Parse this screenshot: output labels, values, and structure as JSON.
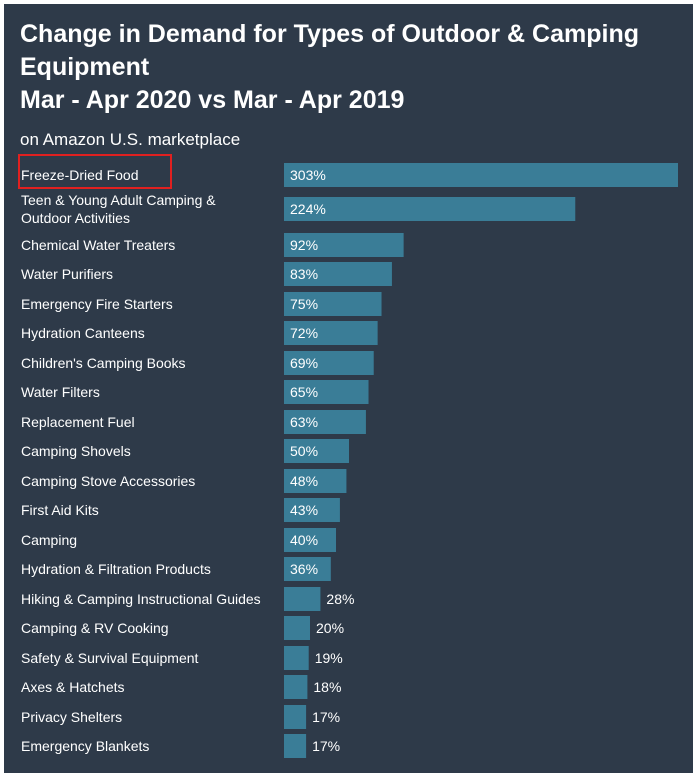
{
  "title": {
    "line1": "Change in Demand for Types of Outdoor & Camping",
    "line2": "Equipment",
    "line3": "Mar - Apr 2020 vs Mar - Apr 2019"
  },
  "subtitle": "on Amazon U.S. marketplace",
  "colors": {
    "background": "#2e3a49",
    "bar": "#3a7d97",
    "text": "#ffffff",
    "highlight": "#e02020"
  },
  "chart_data": {
    "type": "bar",
    "orientation": "horizontal",
    "title": "Change in Demand for Types of Outdoor & Camping Equipment Mar - Apr 2020 vs Mar - Apr 2019",
    "subtitle": "on Amazon U.S. marketplace",
    "categories": [
      "Freeze-Dried Food",
      "Teen & Young Adult Camping & Outdoor Activities",
      "Chemical Water Treaters",
      "Water Purifiers",
      "Emergency Fire Starters",
      "Hydration Canteens",
      "Children's Camping Books",
      "Water Filters",
      "Replacement Fuel",
      "Camping Shovels",
      "Camping Stove Accessories",
      "First Aid Kits",
      "Camping",
      "Hydration & Filtration Products",
      "Hiking & Camping Instructional Guides",
      "Camping & RV Cooking",
      "Safety & Survival Equipment",
      "Axes & Hatchets",
      "Privacy Shelters",
      "Emergency Blankets"
    ],
    "category_lines": [
      [
        "Freeze-Dried Food"
      ],
      [
        "Teen & Young Adult Camping &",
        "Outdoor Activities"
      ],
      [
        "Chemical Water Treaters"
      ],
      [
        "Water Purifiers"
      ],
      [
        "Emergency Fire Starters"
      ],
      [
        "Hydration Canteens"
      ],
      [
        "Children's Camping Books"
      ],
      [
        "Water Filters"
      ],
      [
        "Replacement Fuel"
      ],
      [
        "Camping Shovels"
      ],
      [
        "Camping Stove Accessories"
      ],
      [
        "First Aid Kits"
      ],
      [
        "Camping"
      ],
      [
        "Hydration & Filtration Products"
      ],
      [
        "Hiking & Camping Instructional Guides"
      ],
      [
        "Camping & RV Cooking"
      ],
      [
        "Safety & Survival Equipment"
      ],
      [
        "Axes & Hatchets"
      ],
      [
        "Privacy Shelters"
      ],
      [
        "Emergency Blankets"
      ]
    ],
    "values": [
      303,
      224,
      92,
      83,
      75,
      72,
      69,
      65,
      63,
      50,
      48,
      43,
      40,
      36,
      28,
      20,
      19,
      18,
      17,
      17
    ],
    "data_labels": [
      "303%",
      "224%",
      "92%",
      "83%",
      "75%",
      "72%",
      "69%",
      "65%",
      "63%",
      "50%",
      "48%",
      "43%",
      "40%",
      "36%",
      "28%",
      "20%",
      "19%",
      "18%",
      "17%",
      "17%"
    ],
    "value_unit": "%",
    "xlim": [
      0,
      303
    ],
    "grid": false,
    "legend": "none",
    "highlighted_category": "Freeze-Dried Food"
  }
}
